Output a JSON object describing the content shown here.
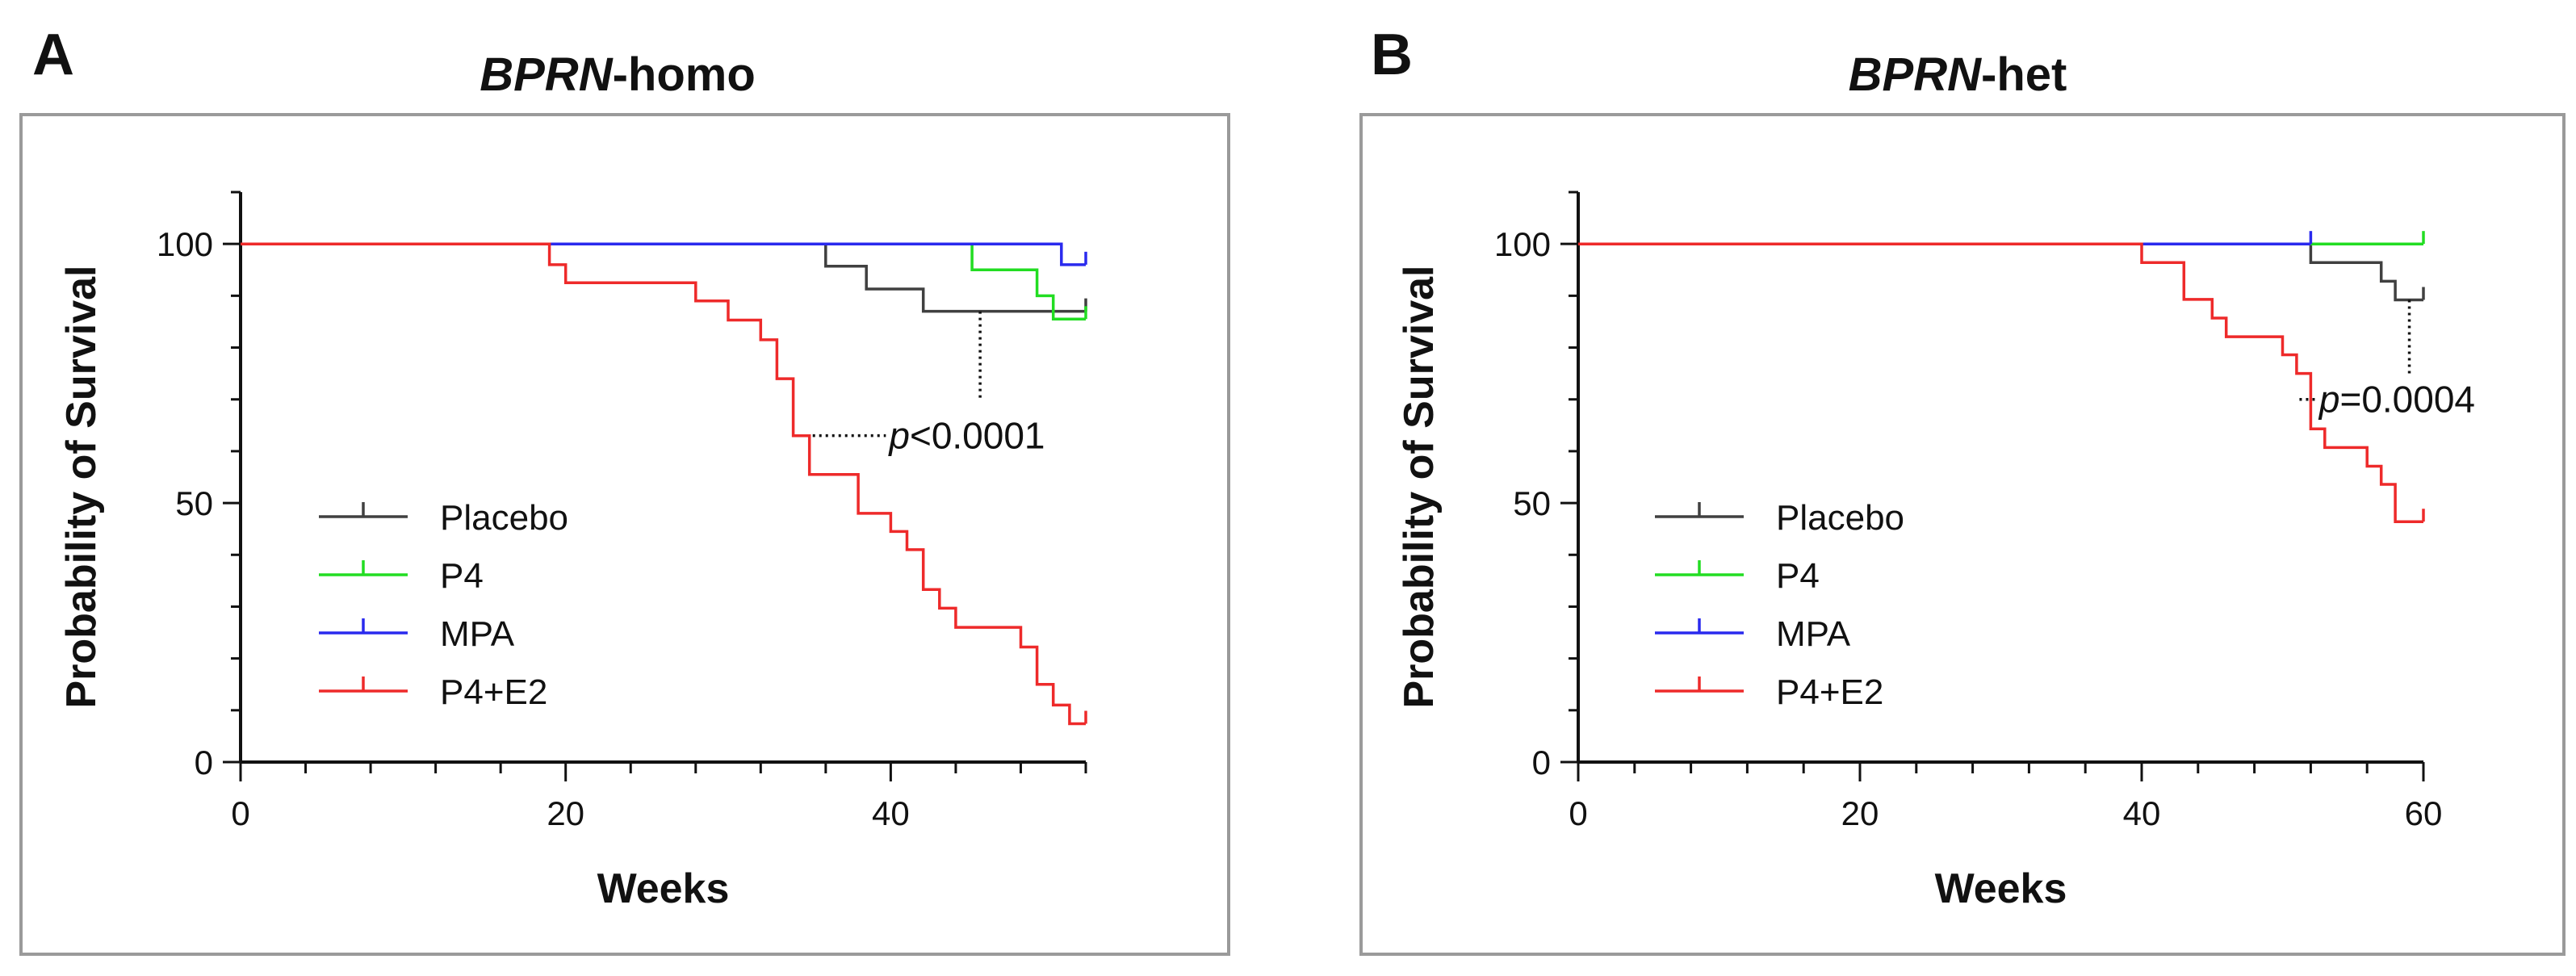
{
  "chart_data": [
    {
      "panel": "A",
      "type": "line",
      "subtype": "kaplan-meier",
      "title_italic": "BPRN",
      "title_rest": "-homo",
      "xlabel": "Weeks",
      "ylabel": "Probability of Survival",
      "xlim": [
        0,
        52
      ],
      "ylim": [
        0,
        110
      ],
      "xticks": [
        0,
        20,
        40
      ],
      "yticks": [
        0,
        50,
        100
      ],
      "legend": {
        "placement": "bottom-left"
      },
      "annotation": {
        "italic": "p",
        "text": "<0.0001",
        "series_a": "Placebo",
        "series_b": "P4+E2"
      },
      "series": [
        {
          "name": "Placebo",
          "color": "#404040",
          "x": [
            0,
            36,
            36,
            38.5,
            38.5,
            42,
            42,
            52
          ],
          "y": [
            100,
            100,
            95.7,
            95.7,
            91.3,
            91.3,
            87,
            87
          ]
        },
        {
          "name": "P4",
          "color": "#22dd22",
          "x": [
            0,
            45,
            45,
            49,
            49,
            50,
            50,
            52
          ],
          "y": [
            100,
            100,
            95,
            95,
            90,
            90,
            85.5,
            85.5
          ]
        },
        {
          "name": "MPA",
          "color": "#2a2aee",
          "x": [
            0,
            50.5,
            50.5,
            52
          ],
          "y": [
            100,
            100,
            96,
            96
          ]
        },
        {
          "name": "P4+E2",
          "color": "#ee2a2a",
          "x": [
            0,
            19,
            19,
            20,
            20,
            28,
            28,
            30,
            30,
            32,
            32,
            33,
            33,
            34,
            34,
            35,
            35,
            38,
            38,
            40,
            40,
            41,
            41,
            42,
            42,
            43,
            43,
            44,
            44,
            48,
            48,
            49,
            49,
            50,
            50,
            51,
            51,
            52
          ],
          "y": [
            100,
            100,
            96,
            96,
            92.5,
            92.5,
            89,
            89,
            85.3,
            85.3,
            81.5,
            81.5,
            74,
            74,
            63,
            63,
            55.5,
            55.5,
            48,
            48,
            44.5,
            44.5,
            41,
            41,
            33.3,
            33.3,
            29.7,
            29.7,
            26,
            26,
            22.2,
            22.2,
            15,
            15,
            11,
            11,
            7.4,
            7.4
          ]
        }
      ]
    },
    {
      "panel": "B",
      "type": "line",
      "subtype": "kaplan-meier",
      "title_italic": "BPRN",
      "title_rest": "-het",
      "xlabel": "Weeks",
      "ylabel": "Probability of Survival",
      "xlim": [
        0,
        60
      ],
      "ylim": [
        0,
        110
      ],
      "xticks": [
        0,
        20,
        40,
        60
      ],
      "yticks": [
        0,
        50,
        100
      ],
      "legend": {
        "placement": "bottom-left"
      },
      "annotation": {
        "italic": "p",
        "text": "=0.0004",
        "series_a": "Placebo",
        "series_b": "P4+E2"
      },
      "series": [
        {
          "name": "Placebo",
          "color": "#404040",
          "x": [
            0,
            52,
            52,
            56,
            56,
            57,
            57,
            58,
            58,
            60
          ],
          "y": [
            100,
            100,
            96.4,
            96.4,
            96.4,
            96.4,
            92.8,
            92.8,
            89.2,
            89.2
          ]
        },
        {
          "name": "P4",
          "color": "#22dd22",
          "x": [
            0,
            60
          ],
          "y": [
            100,
            100
          ]
        },
        {
          "name": "MPA",
          "color": "#2a2aee",
          "x": [
            0,
            52
          ],
          "y": [
            100,
            100
          ]
        },
        {
          "name": "P4+E2",
          "color": "#ee2a2a",
          "x": [
            0,
            40,
            40,
            43,
            43,
            45,
            45,
            46,
            46,
            50,
            50,
            51,
            51,
            52,
            52,
            53,
            53,
            56,
            56,
            57,
            57,
            58,
            58,
            60
          ],
          "y": [
            100,
            100,
            96.4,
            96.4,
            89.3,
            89.3,
            85.7,
            85.7,
            82.1,
            82.1,
            78.6,
            78.6,
            75,
            75,
            64.3,
            64.3,
            60.7,
            60.7,
            57.1,
            57.1,
            53.6,
            53.6,
            46.4,
            46.4
          ]
        }
      ]
    }
  ]
}
